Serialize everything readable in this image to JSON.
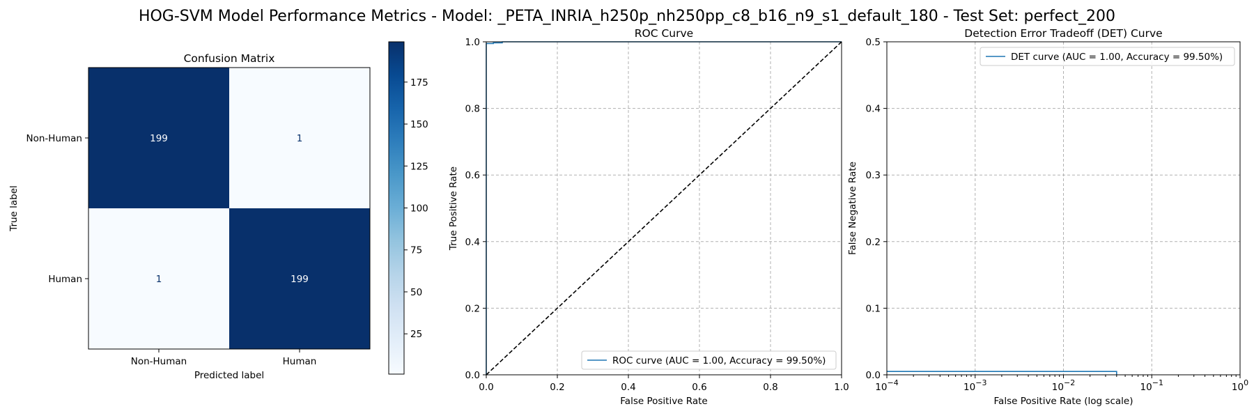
{
  "figure": {
    "suptitle": "HOG-SVM Model Performance Metrics - Model: _PETA_INRIA_h250p_nh250pp_c8_b16_n9_s1_default_180 - Test Set: perfect_200"
  },
  "chart_data": [
    {
      "type": "heatmap",
      "title": "Confusion Matrix",
      "xlabel": "Predicted label",
      "ylabel": "True label",
      "row_labels": [
        "Non-Human",
        "Human"
      ],
      "col_labels": [
        "Non-Human",
        "Human"
      ],
      "values": [
        [
          199,
          1
        ],
        [
          1,
          199
        ]
      ],
      "colormap": "Blues",
      "colorbar": {
        "range": [
          1,
          199
        ],
        "ticks": [
          25,
          50,
          75,
          100,
          125,
          150,
          175
        ]
      },
      "colors": {
        "dark": "#08306b",
        "light": "#f7fbff",
        "text_on_dark": "#ffffff",
        "text_on_light": "#08306b"
      }
    },
    {
      "type": "line",
      "title": "ROC Curve",
      "xlabel": "False Positive Rate",
      "ylabel": "True Positive Rate",
      "xlim": [
        0.0,
        1.0
      ],
      "ylim": [
        0.0,
        1.0
      ],
      "xticks": [
        "0.0",
        "0.2",
        "0.4",
        "0.6",
        "0.8",
        "1.0"
      ],
      "yticks": [
        "0.0",
        "0.2",
        "0.4",
        "0.6",
        "0.8",
        "1.0"
      ],
      "grid": true,
      "legend_position": "lower-right",
      "series": [
        {
          "name": "ROC curve (AUC = 1.00, Accuracy = 99.50%)",
          "color": "#1f77b4",
          "style": "solid",
          "x": [
            0.0,
            0.0,
            0.02,
            0.02,
            0.045,
            0.045,
            1.0
          ],
          "y": [
            0.0,
            0.995,
            0.995,
            0.997,
            0.997,
            1.0,
            1.0
          ]
        },
        {
          "color": "#000000",
          "style": "dashed",
          "x": [
            0.0,
            1.0
          ],
          "y": [
            0.0,
            1.0
          ]
        }
      ]
    },
    {
      "type": "line",
      "title": "Detection Error Tradeoff (DET) Curve",
      "xlabel": "False Positive Rate (log scale)",
      "ylabel": "False Negative Rate",
      "xscale": "log",
      "xlim": [
        0.0001,
        1
      ],
      "ylim": [
        0.0,
        0.5
      ],
      "xticks": [
        0.0001,
        0.001,
        0.01,
        0.1,
        1
      ],
      "xtick_exponents": [
        "−4",
        "−3",
        "−2",
        "−1",
        "0"
      ],
      "yticks": [
        "0.0",
        "0.1",
        "0.2",
        "0.3",
        "0.4",
        "0.5"
      ],
      "grid": true,
      "legend_position": "top-right",
      "series": [
        {
          "name": "DET curve (AUC = 1.00, Accuracy = 99.50%)",
          "color": "#1f77b4",
          "style": "solid",
          "x": [
            0.0001,
            0.04,
            0.04
          ],
          "y": [
            0.005,
            0.005,
            0.0
          ]
        }
      ]
    }
  ]
}
